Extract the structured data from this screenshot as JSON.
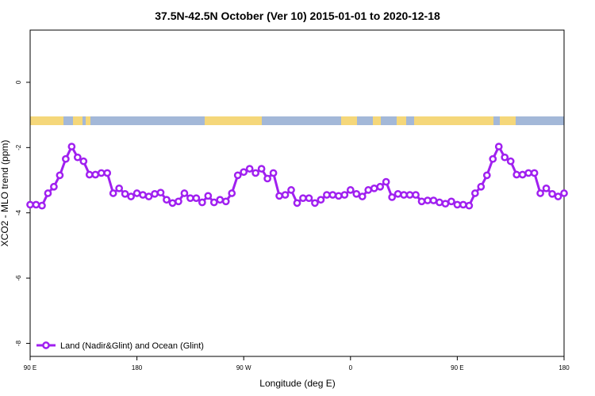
{
  "chart_data": {
    "type": "line",
    "title": "37.5N-42.5N October (Ver 10)   2015-01-01 to 2020-12-18",
    "x_label": "Longitude (deg E)",
    "y_label": "XCO2 - MLO trend (ppm)",
    "xlim": [
      90,
      540
    ],
    "ylim": [
      -8.4,
      1.6
    ],
    "xticks": [
      {
        "value": 90,
        "label": "90 E"
      },
      180,
      {
        "value": 270,
        "label": "90 W"
      },
      {
        "value": 360,
        "label": "0"
      },
      {
        "value": 450,
        "label": "90 E"
      },
      {
        "value": 540,
        "label": "180"
      }
    ],
    "yticks": [
      0,
      -2,
      -4,
      -6,
      -8
    ],
    "legend_position": "bottom-left",
    "x": [
      90,
      95,
      100,
      105,
      110,
      115,
      120,
      125,
      130,
      135,
      140,
      145,
      150,
      155,
      160,
      165,
      170,
      175,
      180,
      185,
      190,
      195,
      200,
      205,
      210,
      215,
      220,
      225,
      230,
      235,
      240,
      245,
      250,
      255,
      260,
      265,
      270,
      275,
      280,
      285,
      290,
      295,
      300,
      305,
      310,
      315,
      320,
      325,
      330,
      335,
      340,
      345,
      350,
      355,
      360,
      365,
      370,
      375,
      380,
      385,
      390,
      395,
      400,
      405,
      410,
      415,
      420,
      425,
      430,
      435,
      440,
      445,
      450,
      455,
      460,
      465,
      470,
      475,
      480,
      485,
      490,
      495,
      500,
      505,
      510,
      515,
      520,
      525,
      530,
      535,
      540
    ],
    "series": [
      {
        "name": "Land (Nadir&Glint) and Ocean (Glint)",
        "color": "#a020f0",
        "values": [
          -3.75,
          -3.75,
          -3.78,
          -3.4,
          -3.2,
          -2.85,
          -2.35,
          -1.97,
          -2.3,
          -2.42,
          -2.83,
          -2.83,
          -2.78,
          -2.78,
          -3.4,
          -3.25,
          -3.42,
          -3.5,
          -3.4,
          -3.45,
          -3.5,
          -3.42,
          -3.38,
          -3.6,
          -3.7,
          -3.65,
          -3.4,
          -3.55,
          -3.55,
          -3.68,
          -3.48,
          -3.68,
          -3.6,
          -3.65,
          -3.4,
          -2.85,
          -2.75,
          -2.65,
          -2.78,
          -2.65,
          -2.95,
          -2.78,
          -3.48,
          -3.45,
          -3.3,
          -3.7,
          -3.55,
          -3.55,
          -3.7,
          -3.6,
          -3.45,
          -3.45,
          -3.48,
          -3.45,
          -3.3,
          -3.42,
          -3.5,
          -3.3,
          -3.25,
          -3.2,
          -3.05,
          -3.52,
          -3.42,
          -3.45,
          -3.45,
          -3.45,
          -3.65,
          -3.62,
          -3.62,
          -3.68,
          -3.72,
          -3.65,
          -3.75,
          -3.75,
          -3.78,
          -3.4,
          -3.2,
          -2.85,
          -2.35,
          -1.97,
          -2.3,
          -2.42,
          -2.83,
          -2.83,
          -2.78,
          -2.78,
          -3.4,
          -3.25,
          -3.42,
          -3.5,
          -3.4
        ]
      }
    ]
  }
}
